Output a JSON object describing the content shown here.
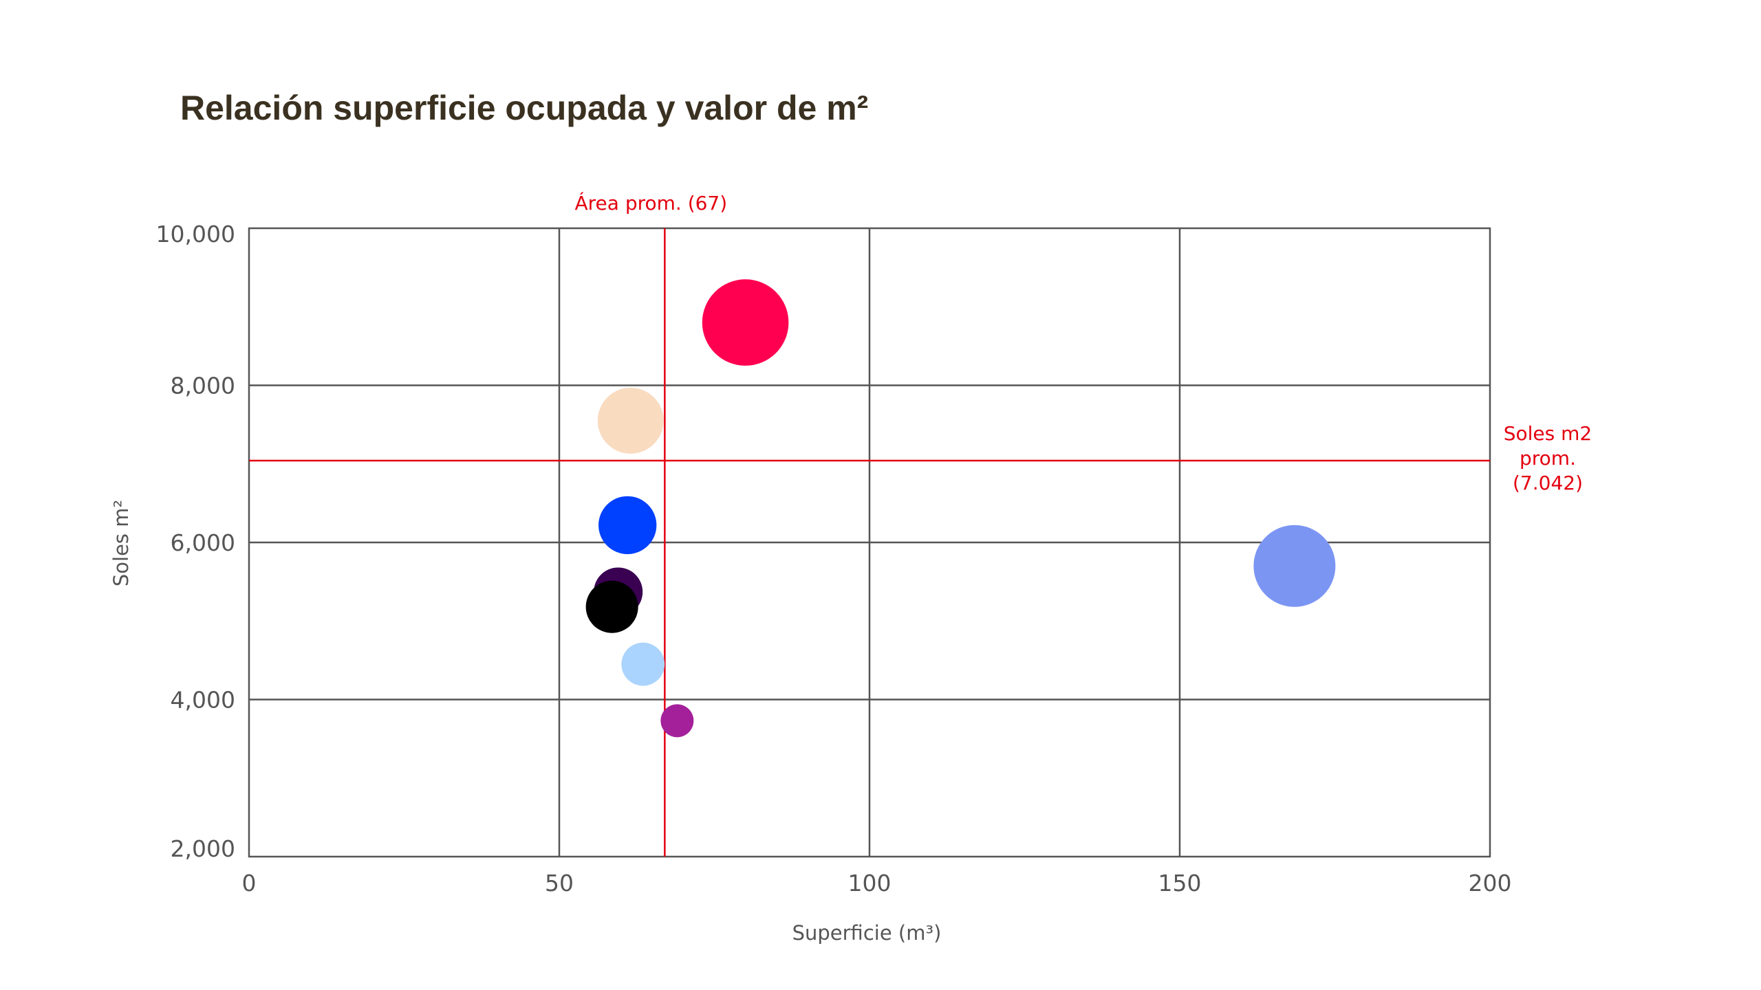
{
  "chart_data": {
    "type": "scatter",
    "title": "Relación superficie ocupada y valor de m²",
    "xlabel": "Superficie (m³)",
    "ylabel": "Soles m²",
    "xlim": [
      0,
      200
    ],
    "ylim": [
      2000,
      10000
    ],
    "x_ticks": [
      0,
      50,
      100,
      150,
      200
    ],
    "x_tick_labels": [
      "0",
      "50",
      "100",
      "150",
      "200"
    ],
    "y_ticks": [
      2000,
      4000,
      6000,
      8000,
      10000
    ],
    "y_tick_labels": [
      "2,000",
      "4,000",
      "6,000",
      "8,000",
      "10,000"
    ],
    "grid": true,
    "reference_lines": {
      "vertical": {
        "x": 67,
        "label": "Área prom. (67)",
        "color": "#e3000f"
      },
      "horizontal": {
        "y": 7042,
        "label_lines": [
          "Soles m2",
          "prom.",
          "(7.042)"
        ],
        "color": "#e3000f"
      }
    },
    "points": [
      {
        "x": 80,
        "y": 8800,
        "size": 38,
        "color": "#ff0050"
      },
      {
        "x": 61.5,
        "y": 7550,
        "size": 29,
        "color": "#f9dbc0"
      },
      {
        "x": 61,
        "y": 6220,
        "size": 25.5,
        "color": "#0040ff"
      },
      {
        "x": 59.5,
        "y": 5370,
        "size": 21.5,
        "color": "#3a0052"
      },
      {
        "x": 58.5,
        "y": 5180,
        "size": 23,
        "color": "#000000"
      },
      {
        "x": 63.5,
        "y": 4450,
        "size": 19,
        "color": "#aad4fd"
      },
      {
        "x": 69,
        "y": 3730,
        "size": 14.5,
        "color": "#a4209a"
      },
      {
        "x": 168.5,
        "y": 5700,
        "size": 36,
        "color": "#7b95f3"
      }
    ]
  }
}
